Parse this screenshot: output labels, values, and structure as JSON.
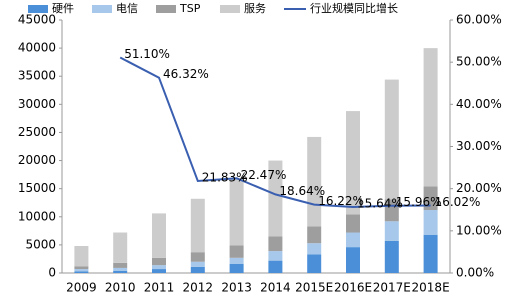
{
  "chart_data": {
    "type": "bar",
    "categories": [
      "2009",
      "2010",
      "2011",
      "2012",
      "2013",
      "2014",
      "2015E",
      "2016E",
      "2017E",
      "2018E"
    ],
    "series": [
      {
        "name": "硬件",
        "color": "#4a8fd8",
        "values": [
          300,
          400,
          700,
          1100,
          1600,
          2200,
          3300,
          4600,
          5700,
          6800
        ]
      },
      {
        "name": "电信",
        "color": "#a7c8ea",
        "values": [
          400,
          500,
          700,
          900,
          1100,
          1700,
          2000,
          2600,
          3500,
          4400
        ]
      },
      {
        "name": "TSP",
        "color": "#9e9e9e",
        "values": [
          500,
          900,
          1300,
          1700,
          2200,
          2600,
          3000,
          3200,
          3900,
          4200
        ]
      },
      {
        "name": "服务",
        "color": "#cccccc",
        "values": [
          3600,
          5400,
          7900,
          9500,
          11800,
          13500,
          15900,
          18400,
          21300,
          24600
        ]
      },
      {
        "name": "行业规模同比增长",
        "type": "line",
        "axis": "y2",
        "color": "#3a5fb0",
        "values": [
          null,
          51.1,
          46.32,
          21.83,
          22.47,
          18.64,
          16.22,
          15.64,
          15.96,
          16.02
        ],
        "value_labels": [
          null,
          "51.10%",
          "46.32%",
          "21.83%",
          "22.47%",
          "18.64%",
          "16.22%",
          "15.64%",
          "15.96%",
          "16.02%"
        ]
      }
    ],
    "ylim": [
      0,
      45000
    ],
    "yticks": [
      0,
      5000,
      10000,
      15000,
      20000,
      25000,
      30000,
      35000,
      40000,
      45000
    ],
    "y2lim": [
      0,
      60
    ],
    "y2ticks": [
      {
        "value": 0,
        "label": "0.00%"
      },
      {
        "value": 10,
        "label": "10.00%"
      },
      {
        "value": 20,
        "label": "20.00%"
      },
      {
        "value": 30,
        "label": "30.00%"
      },
      {
        "value": 40,
        "label": "40.00%"
      },
      {
        "value": 50,
        "label": "50.00%"
      },
      {
        "value": 60,
        "label": "60.00%"
      }
    ],
    "stacked": true,
    "grid": false,
    "legend": "top"
  }
}
